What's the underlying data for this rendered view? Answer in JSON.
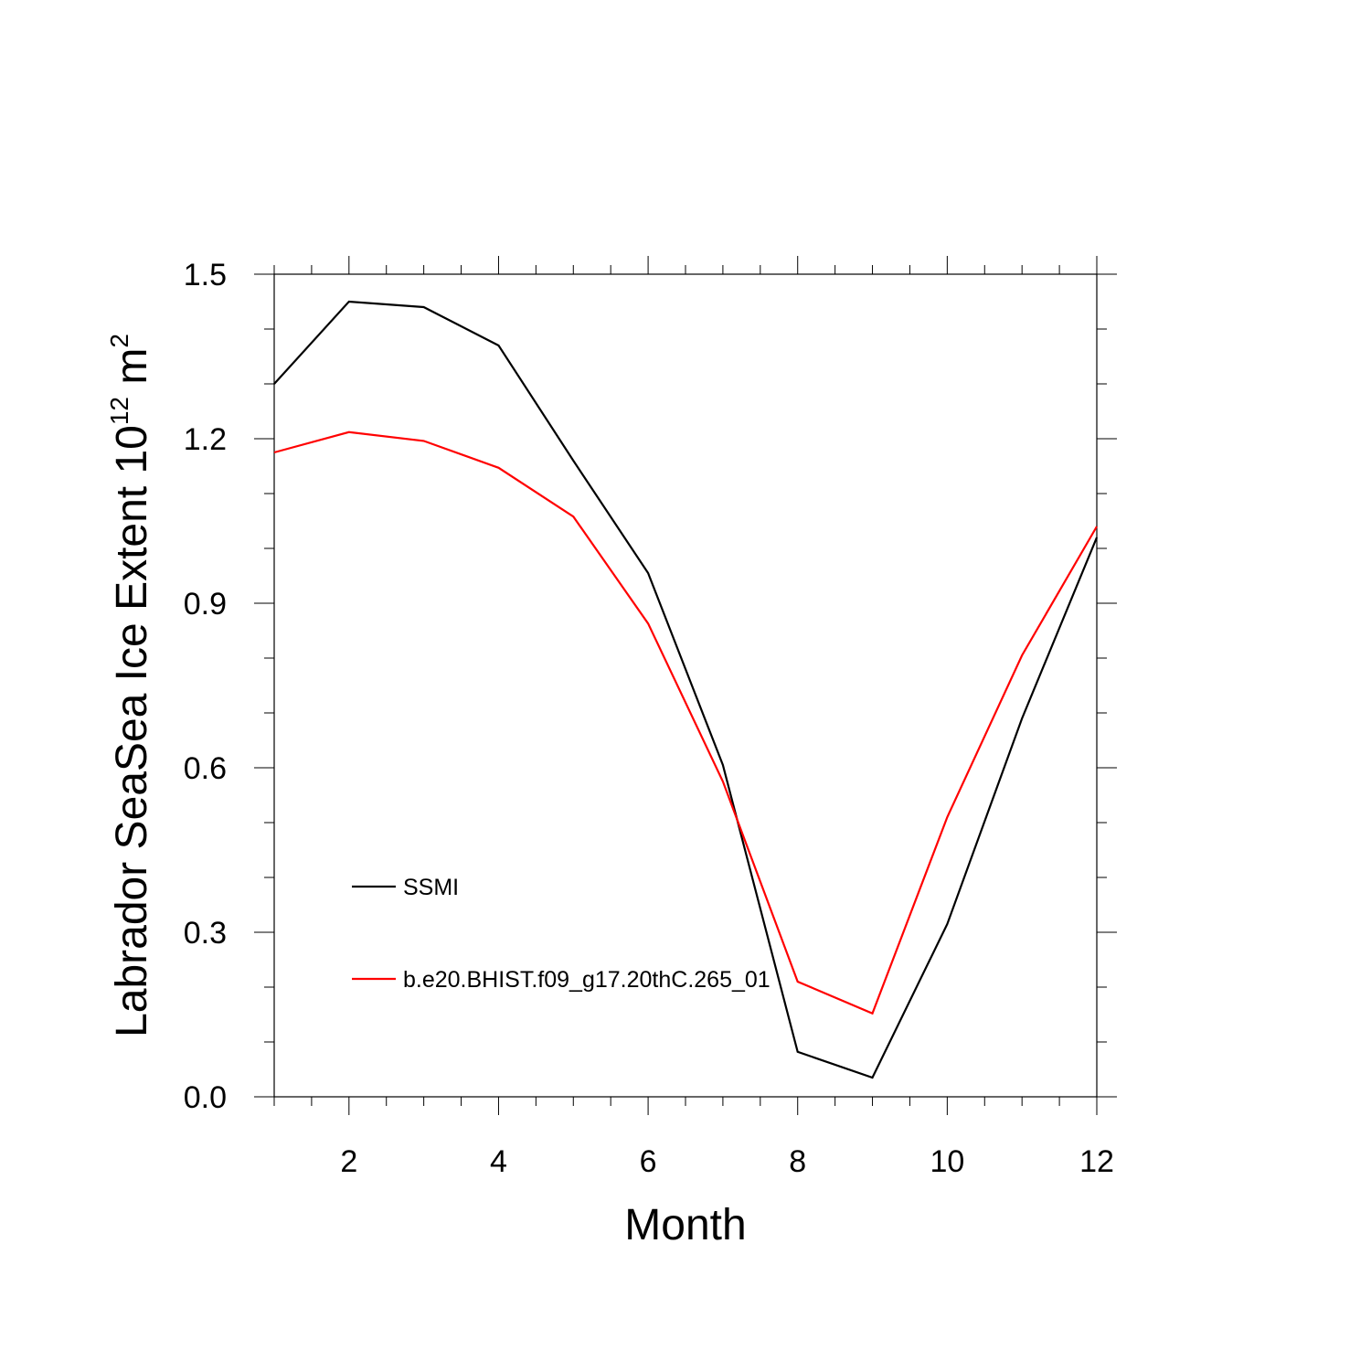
{
  "chart_data": {
    "type": "line",
    "xlabel": "Month",
    "ylabel_main": "Labrador SeaSea Ice Extent 10",
    "ylabel_exp": "12",
    "ylabel_unit": " m",
    "ylabel_unit_exp": "2",
    "xlim": [
      1,
      12
    ],
    "ylim": [
      0,
      1.5
    ],
    "x_ticks": [
      2,
      4,
      6,
      8,
      10,
      12
    ],
    "x_tick_labels": [
      "2",
      "4",
      "6",
      "8",
      "10",
      "12"
    ],
    "y_ticks": [
      0,
      0.3,
      0.6,
      0.9,
      1.2,
      1.5
    ],
    "y_tick_labels": [
      "0.0",
      "0.3",
      "0.6",
      "0.9",
      "1.2",
      "1.5"
    ],
    "x": [
      1,
      2,
      3,
      4,
      5,
      6,
      7,
      8,
      9,
      10,
      11,
      12
    ],
    "series": [
      {
        "name": "SSMI",
        "color": "#000000",
        "values": [
          1.3,
          1.45,
          1.44,
          1.37,
          1.16,
          0.955,
          0.605,
          0.082,
          0.035,
          0.315,
          0.69,
          1.02
        ]
      },
      {
        "name": "b.e20.BHIST.f09_g17.20thC.265_01",
        "color": "#ff0000",
        "values": [
          1.175,
          1.212,
          1.196,
          1.147,
          1.058,
          0.863,
          0.575,
          0.21,
          0.152,
          0.51,
          0.805,
          1.04
        ]
      }
    ],
    "legend_position": "lower-left inside",
    "grid": false
  }
}
